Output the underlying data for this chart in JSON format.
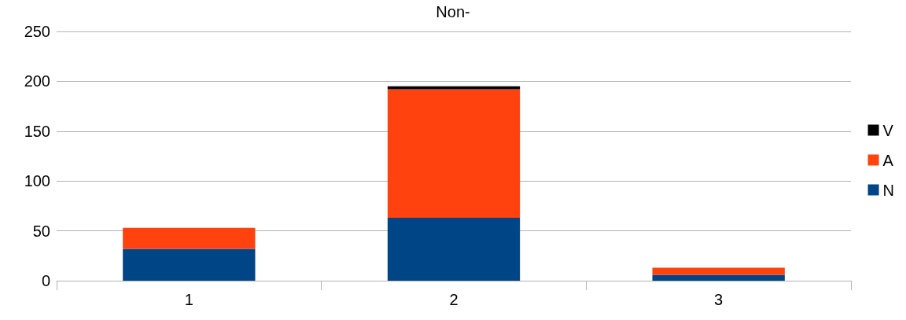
{
  "chart_data": {
    "type": "bar",
    "title": "Non-",
    "categories": [
      "1",
      "2",
      "3"
    ],
    "stacked": true,
    "series": [
      {
        "name": "N",
        "color": "#004586",
        "values": [
          32,
          63,
          6
        ]
      },
      {
        "name": "A",
        "color": "#ff420e",
        "values": [
          21,
          129,
          7
        ]
      },
      {
        "name": "V",
        "color": "#000000",
        "values": [
          0,
          3,
          0
        ]
      }
    ],
    "ylim": [
      0,
      250
    ],
    "yticks": [
      0,
      50,
      100,
      150,
      200,
      250
    ],
    "grid": "y",
    "legend": "right"
  }
}
